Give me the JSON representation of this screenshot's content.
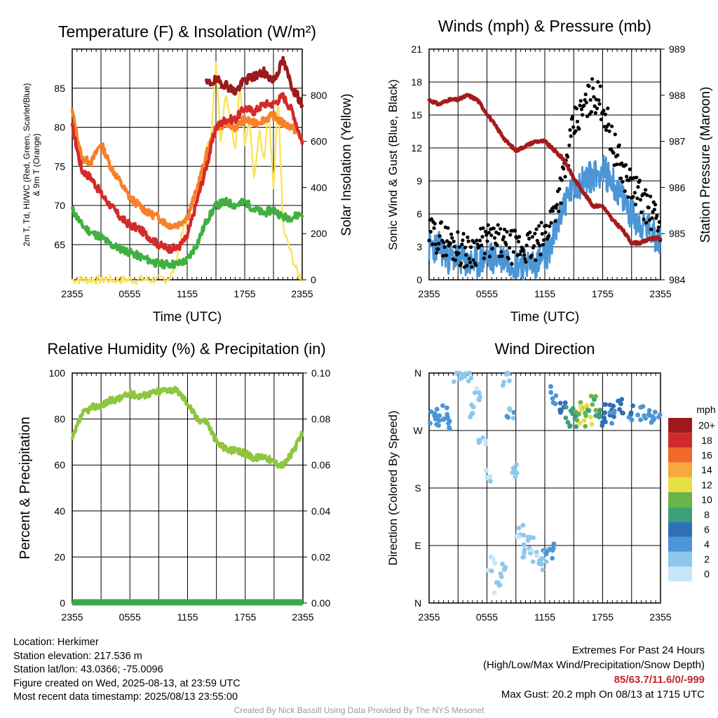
{
  "colors": {
    "temp_red": "#d42a2a",
    "temp_dark": "#9b1a1a",
    "orange": "#f7812a",
    "green": "#40b040",
    "yellow": "#fbe25a",
    "wind_blue": "#4a96d6",
    "gust_black": "#000000",
    "pressure_maroon": "#a51b1b",
    "rh_green": "#8ec63f",
    "precip_green": "#3aa84a"
  },
  "panels": {
    "temp": {
      "title": "Temperature (F) & Insolation (W/m²)",
      "ylabel_left_line1": "2m T, Td, HI/WC (Red, Green, Scarlet/Blue)",
      "ylabel_left_line2": "& 9m T (Orange)",
      "ylabel_right": "Solar Insolation (Yellow)",
      "xlabel": "Time (UTC)"
    },
    "wind": {
      "title": "Winds (mph) & Pressure (mb)",
      "ylabel_left": "Sonic Wind & Gust (Blue, Black)",
      "ylabel_right": "Station Pressure (Maroon)",
      "xlabel": "Time (UTC)"
    },
    "rh": {
      "title": "Relative Humidity (%) & Precipitation (in)",
      "ylabel_left": "Percent & Precipitation"
    },
    "dir": {
      "title": "Wind Direction",
      "ylabel_left": "Direction (Colored By Speed)",
      "colorbar_title": "mph"
    }
  },
  "chart_data": [
    {
      "type": "line",
      "id": "temp",
      "title": "Temperature (F) & Insolation (W/m²)",
      "xlabel": "Time (UTC)",
      "x_ticks": [
        "2355",
        "0555",
        "1155",
        "1755",
        "2355"
      ],
      "xlim_hours": [
        0,
        24
      ],
      "ylim": [
        60.5,
        90
      ],
      "y_ticks": [
        65,
        70,
        75,
        80,
        85
      ],
      "y2lim": [
        0,
        1000
      ],
      "y2_ticks": [
        0,
        200,
        400,
        600,
        800
      ],
      "series": [
        {
          "key": "dewpoint",
          "axis": "left",
          "x": [
            0,
            1,
            2,
            3,
            4,
            5,
            6,
            7,
            8,
            9,
            10,
            11,
            12,
            13,
            14,
            15,
            16,
            17,
            18,
            19,
            20,
            21,
            22,
            23,
            24
          ],
          "values": [
            69.5,
            67.5,
            66.5,
            66,
            65,
            64.5,
            64,
            63.5,
            63,
            62.5,
            62.5,
            62.5,
            63,
            65,
            68,
            70,
            70.5,
            70,
            70.5,
            69.5,
            69,
            69.5,
            68.5,
            68.5,
            69
          ]
        },
        {
          "key": "temp_2m",
          "axis": "left",
          "x": [
            0,
            1,
            2,
            3,
            4,
            5,
            6,
            7,
            8,
            9,
            10,
            11,
            12,
            13,
            14,
            15,
            16,
            17,
            18,
            19,
            20,
            21,
            22,
            23,
            24
          ],
          "values": [
            80,
            74.5,
            73.5,
            71.5,
            70,
            68.5,
            67.5,
            67,
            66,
            65,
            64.5,
            64.5,
            66,
            70.5,
            75,
            80,
            81,
            81,
            82.5,
            82,
            83,
            83,
            84,
            82,
            78
          ]
        },
        {
          "key": "temp_9m",
          "axis": "left",
          "x": [
            0,
            1,
            2,
            3,
            4,
            5,
            6,
            7,
            8,
            9,
            10,
            11,
            12,
            13,
            14,
            15,
            16,
            17,
            18,
            19,
            20,
            21,
            22,
            23,
            24
          ],
          "values": [
            82,
            76,
            75.5,
            78,
            75,
            73,
            71,
            70,
            69,
            68.5,
            67.5,
            67.5,
            68.5,
            72,
            76.5,
            80,
            80.5,
            80,
            81,
            80.5,
            81,
            81.5,
            80.5,
            80,
            78.5
          ]
        },
        {
          "key": "heat_index",
          "axis": "left",
          "x": [
            14,
            15,
            16,
            17,
            18,
            19,
            20,
            21,
            22,
            23,
            24
          ],
          "values": [
            85.5,
            86,
            85.5,
            84.5,
            86,
            86.5,
            87,
            86,
            88.5,
            85,
            83
          ]
        },
        {
          "key": "insolation",
          "axis": "right",
          "x": [
            0,
            1,
            2,
            3,
            4,
            5,
            6,
            7,
            8,
            9,
            10,
            10.5,
            11,
            11.5,
            12,
            12.5,
            13,
            13.5,
            14,
            14.5,
            15,
            15.5,
            16,
            16.5,
            17,
            17.5,
            18,
            18.5,
            19,
            19.5,
            20,
            20.5,
            21,
            21.5,
            22,
            22.5,
            23,
            23.5,
            24
          ],
          "values": [
            0,
            0,
            0,
            0,
            0,
            0,
            0,
            0,
            0,
            0,
            5,
            30,
            110,
            200,
            260,
            330,
            370,
            440,
            560,
            630,
            950,
            600,
            820,
            700,
            550,
            850,
            600,
            700,
            420,
            650,
            500,
            740,
            380,
            800,
            220,
            160,
            90,
            30,
            5
          ]
        }
      ]
    },
    {
      "type": "line",
      "id": "wind",
      "title": "Winds (mph) & Pressure (mb)",
      "xlabel": "Time (UTC)",
      "x_ticks": [
        "2355",
        "0555",
        "1155",
        "1755",
        "2355"
      ],
      "xlim_hours": [
        0,
        24
      ],
      "ylim": [
        0,
        21
      ],
      "y_ticks": [
        0,
        3,
        6,
        9,
        12,
        15,
        18,
        21
      ],
      "y2lim": [
        984,
        989
      ],
      "y2_ticks": [
        984,
        985,
        986,
        987,
        988,
        989
      ],
      "series": [
        {
          "key": "sonic_wind",
          "axis": "left",
          "x": [
            0,
            1,
            2,
            3,
            4,
            5,
            6,
            7,
            8,
            9,
            10,
            11,
            12,
            13,
            14,
            15,
            16,
            17,
            18,
            19,
            20,
            21,
            22,
            23,
            24
          ],
          "values": [
            3,
            3,
            2,
            2,
            1.5,
            1.5,
            2,
            2,
            2,
            1.5,
            1.5,
            1.5,
            2,
            4,
            7,
            8.5,
            9,
            9.5,
            10,
            9,
            7.5,
            6,
            5,
            4.5,
            3.5
          ]
        },
        {
          "key": "gust",
          "axis": "left",
          "x": [
            0,
            1,
            2,
            3,
            4,
            5,
            6,
            7,
            8,
            9,
            10,
            11,
            12,
            13,
            14,
            15,
            16,
            17,
            18,
            19,
            20,
            21,
            22,
            23,
            24
          ],
          "values": [
            4,
            4,
            3.5,
            3,
            2.5,
            3,
            3.5,
            3.5,
            3,
            3,
            3,
            3,
            4,
            6.5,
            9.5,
            14,
            15.5,
            17,
            16,
            12.5,
            10,
            8.5,
            7.5,
            6,
            5
          ]
        },
        {
          "key": "pressure",
          "axis": "right",
          "x": [
            0,
            1,
            2,
            3,
            4,
            5,
            6,
            7,
            8,
            9,
            10,
            11,
            12,
            13,
            14,
            15,
            16,
            17,
            18,
            19,
            20,
            21,
            22,
            23,
            24
          ],
          "values": [
            987.9,
            987.8,
            987.9,
            987.9,
            988,
            987.9,
            987.6,
            987.3,
            987.0,
            986.8,
            986.9,
            987.0,
            987.0,
            986.8,
            986.6,
            986.2,
            985.9,
            985.6,
            985.6,
            985.3,
            985.1,
            984.8,
            984.8,
            984.9,
            984.9
          ]
        }
      ]
    },
    {
      "type": "line",
      "id": "rh",
      "title": "Relative Humidity (%) & Precipitation (in)",
      "xlim_hours": [
        0,
        24
      ],
      "x_ticks": [
        "2355",
        "0555",
        "1155",
        "1755",
        "2355"
      ],
      "ylim": [
        0,
        100
      ],
      "y_ticks": [
        0,
        20,
        40,
        60,
        80,
        100
      ],
      "y2lim": [
        0,
        0.1
      ],
      "y2_ticks": [
        "0.00",
        "0.02",
        "0.04",
        "0.06",
        "0.08",
        "0.10"
      ],
      "series": [
        {
          "key": "rh",
          "axis": "left",
          "x": [
            0,
            1,
            2,
            3,
            4,
            5,
            6,
            7,
            8,
            9,
            10,
            11,
            12,
            13,
            14,
            15,
            16,
            17,
            18,
            19,
            20,
            21,
            22,
            23,
            24
          ],
          "values": [
            71,
            82,
            85,
            86,
            88,
            89,
            91,
            90,
            91,
            92,
            93,
            92,
            87,
            80,
            79,
            70,
            67,
            66,
            65,
            63,
            64,
            61,
            60,
            66,
            74
          ]
        },
        {
          "key": "precip",
          "axis": "right",
          "x": [
            0,
            24
          ],
          "values": [
            0,
            0
          ]
        }
      ]
    },
    {
      "type": "scatter",
      "id": "dir",
      "title": "Wind Direction",
      "xlim_hours": [
        0,
        24
      ],
      "x_ticks": [
        "2355",
        "0555",
        "1155",
        "1755",
        "2355"
      ],
      "y_ticks": [
        "N",
        "E",
        "S",
        "W",
        "N"
      ],
      "colorbar_labels": [
        "0",
        "2",
        "4",
        "6",
        "8",
        "10",
        "12",
        "14",
        "16",
        "18",
        "20+"
      ],
      "colorbar_colors": [
        "#c6e6f8",
        "#8cc8ec",
        "#4a96d6",
        "#2f6fb4",
        "#3aa07a",
        "#6ab44a",
        "#e6df46",
        "#f7a83e",
        "#f06a2a",
        "#d22a2a",
        "#9e1b1b"
      ],
      "direction_deg_approx_points": [
        [
          0.5,
          290,
          4
        ],
        [
          1,
          285,
          4
        ],
        [
          1.5,
          295,
          4
        ],
        [
          2,
          280,
          4
        ],
        [
          3,
          350,
          2
        ],
        [
          4,
          355,
          2
        ],
        [
          4.5,
          300,
          2
        ],
        [
          5,
          330,
          1
        ],
        [
          5.5,
          250,
          1
        ],
        [
          6,
          200,
          1
        ],
        [
          6.5,
          60,
          1
        ],
        [
          7,
          20,
          1
        ],
        [
          7.5,
          50,
          2
        ],
        [
          8,
          350,
          2
        ],
        [
          8.5,
          300,
          3
        ],
        [
          9,
          210,
          2
        ],
        [
          9.5,
          110,
          1
        ],
        [
          10,
          80,
          2
        ],
        [
          10.5,
          90,
          2
        ],
        [
          11,
          70,
          1
        ],
        [
          11.5,
          60,
          2
        ],
        [
          12,
          75,
          3
        ],
        [
          12.5,
          80,
          4
        ],
        [
          13,
          325,
          4
        ],
        [
          14,
          300,
          6
        ],
        [
          14.5,
          295,
          8
        ],
        [
          15,
          290,
          9
        ],
        [
          15.5,
          300,
          10
        ],
        [
          16,
          295,
          12
        ],
        [
          16.5,
          290,
          11
        ],
        [
          17,
          310,
          9
        ],
        [
          17.5,
          300,
          8
        ],
        [
          18,
          290,
          7
        ],
        [
          18.5,
          300,
          6
        ],
        [
          19,
          295,
          5
        ],
        [
          20,
          310,
          6
        ],
        [
          21,
          300,
          5
        ],
        [
          22,
          295,
          4
        ],
        [
          23,
          290,
          4
        ],
        [
          23.5,
          285,
          4
        ]
      ]
    }
  ],
  "footer": {
    "location": "Location: Herkimer",
    "elevation": "Station elevation: 217.536 m",
    "latlon": "Station lat/lon: 43.0366; -75.0096",
    "created": "Figure created on Wed, 2025-08-13, at 23:59 UTC",
    "recent": "Most recent data timestamp: 2025/08/13 23:55:00",
    "extremes_title": "Extremes For Past 24 Hours",
    "extremes_sub": "(High/Low/Max Wind/Precipitation/Snow Depth)",
    "extremes_values": "85/63.7/11.6/0/-999",
    "max_gust": "Max Gust: 20.2 mph On 08/13 at 1715 UTC",
    "credit": "Created By Nick Bassill Using Data Provided By The NYS Mesonet"
  }
}
